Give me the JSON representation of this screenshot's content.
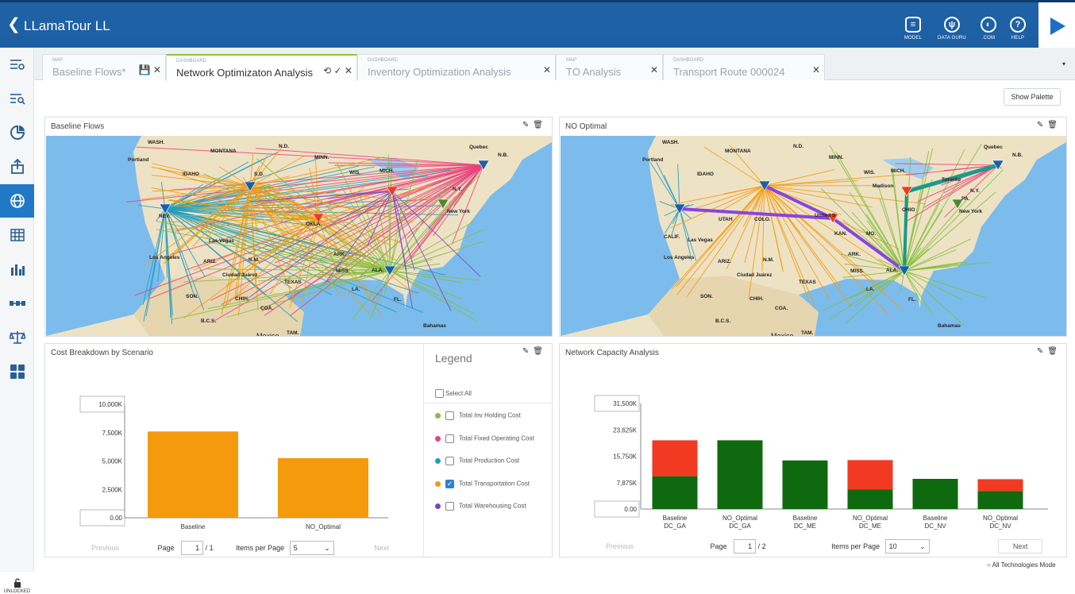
{
  "header": {
    "title": "LLamaTour LL",
    "buttons": [
      {
        "label": "MODEL",
        "icon": "database-icon"
      },
      {
        "label": "DATA GURU",
        "icon": "data-guru-icon"
      },
      {
        "label": ".COM",
        "icon": "globe-icon"
      },
      {
        "label": "HELP",
        "icon": "help-icon"
      }
    ]
  },
  "sidebar": {
    "items": [
      "filter-list-icon",
      "search-list-icon",
      "pie-chart-icon",
      "upload-icon",
      "globe-network-icon",
      "table-grid-icon",
      "bar-chart-icon",
      "flow-icon",
      "scale-icon",
      "dashboard-tiles-icon"
    ],
    "active_index": 4,
    "lock_label": "UNLOCKED"
  },
  "tabs": [
    {
      "type": "MAP",
      "name": "Baseline Flows*",
      "active": false
    },
    {
      "type": "DASHBOARD",
      "name": "Network Optimizaton Analysis",
      "active": true
    },
    {
      "type": "DASHBOARD",
      "name": "Inventory Optimization Analysis",
      "active": false
    },
    {
      "type": "MAP",
      "name": "TO Analysis",
      "active": false
    },
    {
      "type": "DASHBOARD",
      "name": "Transport Route 000024",
      "active": false
    }
  ],
  "toolbar": {
    "show_palette": "Show Palette"
  },
  "panels": {
    "baseline_flows": {
      "title": "Baseline Flows"
    },
    "no_optimal": {
      "title": "NO Optimal"
    },
    "cost_breakdown": {
      "title": "Cost Breakdown by Scenario"
    },
    "network_capacity": {
      "title": "Network Capacity Analysis"
    }
  },
  "map_labels": {
    "left": [
      "WASH.",
      "MONTANA",
      "N.D.",
      "MINN.",
      "Quebec",
      "N.B.",
      "Portland",
      "IDAHO",
      "S.D.",
      "WIS.",
      "MICH.",
      "NEV.",
      "Las Vegas",
      "Los Angeles",
      "ARIZ.",
      "N.M.",
      "TEXAS",
      "Ciudad Juárez",
      "SON.",
      "CHIH.",
      "COA.",
      "B.C.S.",
      "TAM.",
      "Mexico",
      "OKLA.",
      "ARK.",
      "MISS.",
      "ALA.",
      "LA.",
      "FL.",
      "Bahamas",
      "New York",
      "N.Y."
    ],
    "right": [
      "WASH.",
      "MONTANA",
      "N.D.",
      "MINN.",
      "Quebec",
      "N.B.",
      "Portland",
      "IDAHO",
      "WIS.",
      "MICH.",
      "Madison",
      "Toronto",
      "N.Y.",
      "PA.",
      "New York",
      "UTAH",
      "COLO.",
      "United S",
      "KAN.",
      "MO.",
      "OHIO",
      "CALIF.",
      "Las Vegas",
      "Los Angeles",
      "ARIZ.",
      "N.M.",
      "Ciudad Juárez",
      "TEXAS",
      "SON.",
      "CHIH.",
      "COA.",
      "ARK.",
      "MISS.",
      "ALA.",
      "LA.",
      "FL.",
      "Bahamas",
      "B.C.S.",
      "TAM.",
      "Mexico"
    ]
  },
  "cost_chart": {
    "chart_data": {
      "type": "bar",
      "categories": [
        "Baseline",
        "NO_Optimal"
      ],
      "series": [
        {
          "name": "Total Transportation Cost",
          "values": [
            7600,
            5250
          ]
        }
      ],
      "ylim": [
        0,
        10000
      ],
      "yticks": [
        "10,000K",
        "7,500K",
        "5,000K",
        "2,500K",
        "0.00"
      ],
      "bar_color": "#f59a0c"
    },
    "legend": {
      "title": "Legend",
      "select_all": "Select All",
      "items": [
        {
          "label": "Total Inv Holding Cost",
          "color": "#7fc13a",
          "checked": false
        },
        {
          "label": "Total Fixed Operating Cost",
          "color": "#e8427a",
          "checked": false
        },
        {
          "label": "Total Production Cost",
          "color": "#1e9fc2",
          "checked": false
        },
        {
          "label": "Total Transportation Cost",
          "color": "#f59a0c",
          "checked": true
        },
        {
          "label": "Total Warehousing Cost",
          "color": "#7a45c8",
          "checked": false
        }
      ]
    },
    "pager": {
      "previous": "Previous",
      "page_label": "Page",
      "page": "1",
      "of": "/ 1",
      "ipp_label": "Items per Page",
      "ipp": "5",
      "next": "Next"
    }
  },
  "capacity_chart": {
    "chart_data": {
      "type": "bar",
      "categories": [
        "Baseline\nDC_GA",
        "NO_Optimal\nDC_GA",
        "Baseline\nDC_ME",
        "NO_Optimal\nDC_ME",
        "Baseline\nDC_NV",
        "NO_Optimal\nDC_NV"
      ],
      "series": [
        {
          "values": [
            9800,
            20500,
            14500,
            5800,
            9000,
            5400
          ],
          "color": "#0f6a0f"
        },
        {
          "values": [
            10700,
            0,
            0,
            8800,
            0,
            3500
          ],
          "color": "#f23a22"
        }
      ],
      "ylim": [
        0,
        31500
      ],
      "yticks": [
        "31,500K",
        "23,625K",
        "15,750K",
        "7,875K",
        "0.00"
      ],
      "stacked": true
    },
    "pager": {
      "previous": "Previous",
      "page_label": "Page",
      "page": "1",
      "of": "/ 2",
      "ipp_label": "Items per Page",
      "ipp": "10",
      "next": "Next"
    }
  },
  "status": {
    "mode": "All Technologies Mode"
  }
}
